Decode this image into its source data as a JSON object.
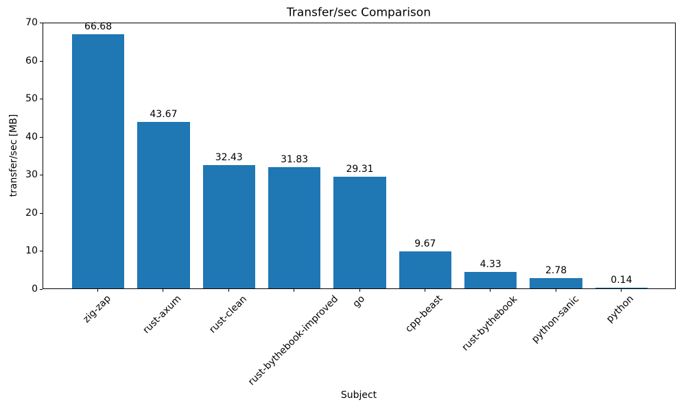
{
  "chart_data": {
    "type": "bar",
    "title": "Transfer/sec Comparison",
    "xlabel": "Subject",
    "ylabel": "transfer/sec [MB]",
    "categories": [
      "zig-zap",
      "rust-axum",
      "rust-clean",
      "rust-bythebook-improved",
      "go",
      "cpp-beast",
      "rust-bythebook",
      "python-sanic",
      "python"
    ],
    "values": [
      66.68,
      43.67,
      32.43,
      31.83,
      29.31,
      9.67,
      4.33,
      2.78,
      0.14
    ],
    "bar_labels": [
      "66.68",
      "43.67",
      "32.43",
      "31.83",
      "29.31",
      "9.67",
      "4.33",
      "2.78",
      "0.14"
    ],
    "ylim": [
      0,
      70
    ],
    "yticks": [
      0,
      10,
      20,
      30,
      40,
      50,
      60,
      70
    ],
    "bar_color": "#1f77b4",
    "axis_color": "#000000",
    "background_color": "#ffffff",
    "grid": false,
    "legend_position": "none",
    "x_tick_rotation_deg": 45,
    "bar_width_fraction": 0.8
  }
}
